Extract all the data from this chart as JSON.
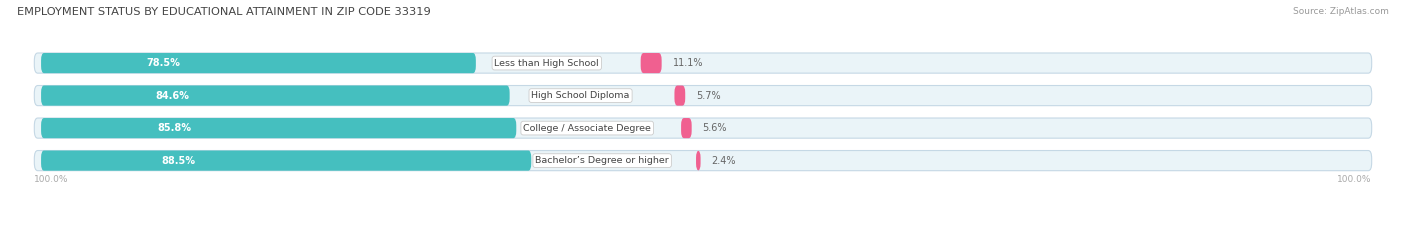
{
  "title": "EMPLOYMENT STATUS BY EDUCATIONAL ATTAINMENT IN ZIP CODE 33319",
  "source": "Source: ZipAtlas.com",
  "categories": [
    "Less than High School",
    "High School Diploma",
    "College / Associate Degree",
    "Bachelor’s Degree or higher"
  ],
  "labor_force_pct": [
    78.5,
    84.6,
    85.8,
    88.5
  ],
  "unemployed_pct": [
    11.1,
    5.7,
    5.6,
    2.4
  ],
  "labor_force_color": "#45BFBF",
  "unemployed_color": "#F06090",
  "bar_bg_color": "#EAF4F8",
  "bar_border_color": "#C5D8E5",
  "title_color": "#444444",
  "source_color": "#999999",
  "axis_label_color": "#AAAAAA",
  "legend_color": "#555555",
  "left_axis_label": "100.0%",
  "right_axis_label": "100.0%",
  "background_color": "#FFFFFF",
  "bar_height": 0.62,
  "label_box_color": "#FFFFFF",
  "label_box_border": "#CCCCCC",
  "pct_label_lf_color": "#FFFFFF",
  "pct_label_un_color": "#666666",
  "category_text_color": "#444444"
}
